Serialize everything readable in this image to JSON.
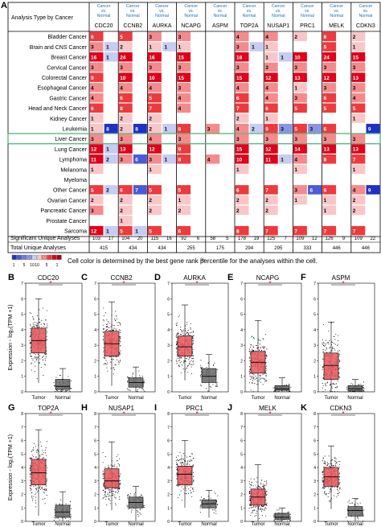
{
  "panel_a": {
    "letter": "A",
    "header_label": "Analysis Type by Cancer",
    "compare_label": [
      "Cancer",
      "vs.",
      "Normal"
    ],
    "genes": [
      "CDC20",
      "CCNB2",
      "AURKA",
      "NCAPG",
      "ASPM",
      "TOP2A",
      "NUSAP1",
      "PRC1",
      "MELK",
      "CDKN3"
    ],
    "cancers": [
      "Bladder Cancer",
      "Brain and CNS Cancer",
      "Breast Cancer",
      "Cervical Cancer",
      "Colorectal Cancer",
      "Esophageal Cancer",
      "Gastric Cancer",
      "Head and Neck Cancer",
      "Kidney Cancer",
      "Leukemia",
      "Liver Cancer",
      "Lung Cancer",
      "Lymphoma",
      "Melanoma",
      "Myeloma",
      "Other Cancer",
      "Ovarian Cancer",
      "Pancreatic Cancer",
      "Prostate Cancer",
      "Sarcoma"
    ],
    "highlighted_cancer": "Liver Cancer",
    "cells": [
      [
        [
          "6",
          ""
        ],
        [
          "5",
          ""
        ],
        [
          "3",
          ""
        ],
        [
          "3",
          ""
        ],
        [
          "",
          ""
        ],
        [
          "4",
          ""
        ],
        [
          "4",
          ""
        ],
        [
          "2",
          ""
        ],
        [
          "6",
          ""
        ],
        [
          "2",
          ""
        ]
      ],
      [
        [
          "3",
          "1"
        ],
        [
          "2",
          ""
        ],
        [
          "1",
          "1"
        ],
        [
          "1",
          ""
        ],
        [
          "",
          ""
        ],
        [
          "3",
          "1"
        ],
        [
          "1",
          ""
        ],
        [
          "",
          ""
        ],
        [
          "5",
          ""
        ],
        [
          "1",
          ""
        ]
      ],
      [
        [
          "16",
          "1"
        ],
        [
          "24",
          ""
        ],
        [
          "16",
          ""
        ],
        [
          "15",
          ""
        ],
        [
          "",
          ""
        ],
        [
          "18",
          ""
        ],
        [
          "1",
          "1"
        ],
        [
          "10",
          ""
        ],
        [
          "24",
          ""
        ],
        [
          "15",
          ""
        ]
      ],
      [
        [
          "3",
          ""
        ],
        [
          "3",
          ""
        ],
        [
          "3",
          ""
        ],
        [
          "3",
          ""
        ],
        [
          "",
          ""
        ],
        [
          "3",
          ""
        ],
        [
          "3",
          ""
        ],
        [
          "3",
          ""
        ],
        [
          "3",
          ""
        ],
        [
          "3",
          ""
        ]
      ],
      [
        [
          "9",
          ""
        ],
        [
          "10",
          ""
        ],
        [
          "10",
          ""
        ],
        [
          "15",
          ""
        ],
        [
          "",
          ""
        ],
        [
          "15",
          ""
        ],
        [
          "12",
          ""
        ],
        [
          "13",
          ""
        ],
        [
          "12",
          ""
        ],
        [
          "13",
          ""
        ]
      ],
      [
        [
          "4",
          ""
        ],
        [
          "4",
          ""
        ],
        [
          "4",
          ""
        ],
        [
          "3",
          ""
        ],
        [
          "",
          ""
        ],
        [
          "4",
          ""
        ],
        [
          "4",
          ""
        ],
        [
          "1",
          ""
        ],
        [
          "3",
          ""
        ],
        [
          "3",
          ""
        ]
      ],
      [
        [
          "4",
          ""
        ],
        [
          "6",
          ""
        ],
        [
          "5",
          ""
        ],
        [
          "4",
          ""
        ],
        [
          "",
          ""
        ],
        [
          "6",
          ""
        ],
        [
          "4",
          ""
        ],
        [
          "3",
          ""
        ],
        [
          "6",
          ""
        ],
        [
          "4",
          ""
        ]
      ],
      [
        [
          "6",
          ""
        ],
        [
          "8",
          ""
        ],
        [
          "7",
          ""
        ],
        [
          "4",
          ""
        ],
        [
          "",
          ""
        ],
        [
          "7",
          ""
        ],
        [
          "6",
          ""
        ],
        [
          "5",
          ""
        ],
        [
          "5",
          ""
        ],
        [
          "5",
          ""
        ]
      ],
      [
        [
          "1",
          ""
        ],
        [
          "2",
          ""
        ],
        [
          "2",
          ""
        ],
        [
          "",
          ""
        ],
        [
          "",
          ""
        ],
        [
          "2",
          ""
        ],
        [
          "1",
          ""
        ],
        [
          "",
          ""
        ],
        [
          "",
          ""
        ],
        [
          "1",
          ""
        ]
      ],
      [
        [
          "1",
          "8"
        ],
        [
          "2",
          "8"
        ],
        [
          "2",
          "1"
        ],
        [
          "8",
          ""
        ],
        [
          "3",
          ""
        ],
        [
          "4",
          "2"
        ],
        [
          "9",
          "3"
        ],
        [
          "5",
          "3"
        ],
        [
          "6",
          ""
        ],
        [
          "",
          "9"
        ]
      ],
      [
        [
          "3",
          ""
        ],
        [
          "3",
          ""
        ],
        [
          "4",
          ""
        ],
        [
          "3",
          ""
        ],
        [
          "",
          ""
        ],
        [
          "3",
          ""
        ],
        [
          "3",
          ""
        ],
        [
          "3",
          ""
        ],
        [
          "3",
          ""
        ],
        [
          "3",
          ""
        ]
      ],
      [
        [
          "12",
          "1"
        ],
        [
          "13",
          ""
        ],
        [
          "12",
          ""
        ],
        [
          "9",
          ""
        ],
        [
          "",
          ""
        ],
        [
          "15",
          ""
        ],
        [
          "12",
          ""
        ],
        [
          "14",
          ""
        ],
        [
          "13",
          ""
        ],
        [
          "13",
          ""
        ]
      ],
      [
        [
          "11",
          "2"
        ],
        [
          "3",
          "6"
        ],
        [
          "3",
          "1"
        ],
        [
          "8",
          ""
        ],
        [
          "4",
          ""
        ],
        [
          "10",
          ""
        ],
        [
          "11",
          "1"
        ],
        [
          "4",
          ""
        ],
        [
          "8",
          ""
        ],
        [
          "7",
          ""
        ]
      ],
      [
        [
          "1",
          ""
        ],
        [
          "",
          ""
        ],
        [
          "1",
          ""
        ],
        [
          "",
          ""
        ],
        [
          "",
          ""
        ],
        [
          "1",
          ""
        ],
        [
          "",
          ""
        ],
        [
          "1",
          ""
        ],
        [
          "",
          ""
        ],
        [
          "1",
          ""
        ]
      ],
      [
        [
          "",
          ""
        ],
        [
          "",
          ""
        ],
        [
          "",
          ""
        ],
        [
          "",
          ""
        ],
        [
          "",
          ""
        ],
        [
          "",
          ""
        ],
        [
          "",
          ""
        ],
        [
          "",
          ""
        ],
        [
          "",
          ""
        ],
        [
          "",
          ""
        ]
      ],
      [
        [
          "5",
          "2"
        ],
        [
          "6",
          "7"
        ],
        [
          "5",
          ""
        ],
        [
          "5",
          ""
        ],
        [
          "",
          ""
        ],
        [
          "6",
          ""
        ],
        [
          "7",
          ""
        ],
        [
          "3",
          "6"
        ],
        [
          "6",
          ""
        ],
        [
          "4",
          "9"
        ]
      ],
      [
        [
          "2",
          ""
        ],
        [
          "2",
          ""
        ],
        [
          "2",
          ""
        ],
        [
          "1",
          ""
        ],
        [
          "",
          ""
        ],
        [
          "2",
          ""
        ],
        [
          "2",
          ""
        ],
        [
          "1",
          ""
        ],
        [
          "1",
          ""
        ],
        [
          "2",
          ""
        ]
      ],
      [
        [
          "3",
          ""
        ],
        [
          "2",
          ""
        ],
        [
          "2",
          ""
        ],
        [
          "2",
          ""
        ],
        [
          "",
          ""
        ],
        [
          "2",
          ""
        ],
        [
          "2",
          ""
        ],
        [
          "",
          ""
        ],
        [
          "1",
          ""
        ],
        [
          "2",
          ""
        ]
      ],
      [
        [
          "",
          ""
        ],
        [
          "1",
          ""
        ],
        [
          "",
          ""
        ],
        [
          "",
          ""
        ],
        [
          "",
          ""
        ],
        [
          "",
          ""
        ],
        [
          "",
          ""
        ],
        [
          "",
          ""
        ],
        [
          "",
          ""
        ],
        [
          "",
          ""
        ]
      ],
      [
        [
          "12",
          "1"
        ],
        [
          "5",
          "1"
        ],
        [
          "5",
          ""
        ],
        [
          "6",
          ""
        ],
        [
          "",
          ""
        ],
        [
          "8",
          ""
        ],
        [
          "7",
          ""
        ],
        [
          "7",
          ""
        ],
        [
          "7",
          ""
        ],
        [
          "7",
          ""
        ]
      ]
    ],
    "significant_label": "Significant Unique Analyses",
    "total_label": "Total Unique Analyses",
    "significant": [
      [
        "103",
        "17"
      ],
      [
        "104",
        "20"
      ],
      [
        "115",
        "16"
      ],
      [
        "92",
        "6"
      ],
      [
        "58",
        "5"
      ],
      [
        "178",
        "19"
      ],
      [
        "125",
        "7"
      ],
      [
        "109",
        "12"
      ],
      [
        "126",
        "9"
      ],
      [
        "109",
        "22"
      ]
    ],
    "total": [
      "415",
      "434",
      "434",
      "255",
      "175",
      "294",
      "295",
      "333",
      "446",
      "446"
    ],
    "legend_ticks": [
      "1",
      "5",
      "10",
      "10",
      "5",
      "1"
    ],
    "legend_note": "Cell color is determined by the best gene rank percentile for the analyses within the cell.",
    "legend_percent": "%"
  },
  "boxplots": {
    "y_label": "Expression - log₂(TPM +1)",
    "groups": [
      "Tumor",
      "Normal"
    ],
    "significance_mark": "*",
    "tumor_color": "#e8575a",
    "normal_color": "#666666",
    "rows": [
      {
        "y_ticks": [
          "0",
          "1",
          "2",
          "3",
          "4",
          "5",
          "6",
          "7"
        ],
        "panels": [
          {
            "letter": "B",
            "gene": "CDC20",
            "tumor": {
              "median": 3.3,
              "q1": 2.5,
              "q3": 4.1,
              "max": 6.0
            },
            "normal": {
              "median": 0.35,
              "q1": 0.15,
              "q3": 0.8,
              "max": 1.5
            }
          },
          {
            "letter": "C",
            "gene": "CCNB2",
            "tumor": {
              "median": 3.1,
              "q1": 2.3,
              "q3": 3.9,
              "max": 5.8
            },
            "normal": {
              "median": 0.6,
              "q1": 0.3,
              "q3": 0.9,
              "max": 1.6
            }
          },
          {
            "letter": "D",
            "gene": "AURKA",
            "tumor": {
              "median": 2.9,
              "q1": 2.3,
              "q3": 3.6,
              "max": 5.6
            },
            "normal": {
              "median": 1.0,
              "q1": 0.6,
              "q3": 1.5,
              "max": 2.4
            }
          },
          {
            "letter": "E",
            "gene": "NCAPG",
            "tumor": {
              "median": 1.9,
              "q1": 1.2,
              "q3": 2.6,
              "max": 4.6
            },
            "normal": {
              "median": 0.2,
              "q1": 0.1,
              "q3": 0.4,
              "max": 0.9
            }
          },
          {
            "letter": "F",
            "gene": "ASPM",
            "tumor": {
              "median": 1.7,
              "q1": 0.8,
              "q3": 2.5,
              "max": 4.5
            },
            "normal": {
              "median": 0.2,
              "q1": 0.05,
              "q3": 0.4,
              "max": 0.8
            }
          }
        ]
      },
      {
        "y_ticks": [
          "0",
          "1",
          "2",
          "3",
          "4",
          "5",
          "6",
          "7",
          "8"
        ],
        "panels": [
          {
            "letter": "G",
            "gene": "TOP2A",
            "tumor": {
              "median": 3.6,
              "q1": 2.7,
              "q3": 4.6,
              "max": 6.8
            },
            "normal": {
              "median": 0.7,
              "q1": 0.3,
              "q3": 1.2,
              "max": 2.2
            }
          },
          {
            "letter": "H",
            "gene": "NUSAP1",
            "tumor": {
              "median": 3.0,
              "q1": 2.5,
              "q3": 3.9,
              "max": 5.9
            },
            "normal": {
              "median": 1.4,
              "q1": 1.0,
              "q3": 1.8,
              "max": 2.6
            }
          },
          {
            "letter": "I",
            "gene": "PRC1",
            "tumor": {
              "median": 3.5,
              "q1": 2.7,
              "q3": 4.1,
              "max": 6.0
            },
            "normal": {
              "median": 1.3,
              "q1": 1.0,
              "q3": 1.6,
              "max": 2.3
            }
          },
          {
            "letter": "J",
            "gene": "MELK",
            "tumor": {
              "median": 1.8,
              "q1": 1.2,
              "q3": 2.4,
              "max": 4.2
            },
            "normal": {
              "median": 0.3,
              "q1": 0.15,
              "q3": 0.6,
              "max": 1.0
            }
          },
          {
            "letter": "K",
            "gene": "CDKN3",
            "tumor": {
              "median": 3.3,
              "q1": 2.6,
              "q3": 4.0,
              "max": 5.6
            },
            "normal": {
              "median": 0.8,
              "q1": 0.4,
              "q3": 1.1,
              "max": 1.7
            }
          }
        ]
      }
    ]
  }
}
